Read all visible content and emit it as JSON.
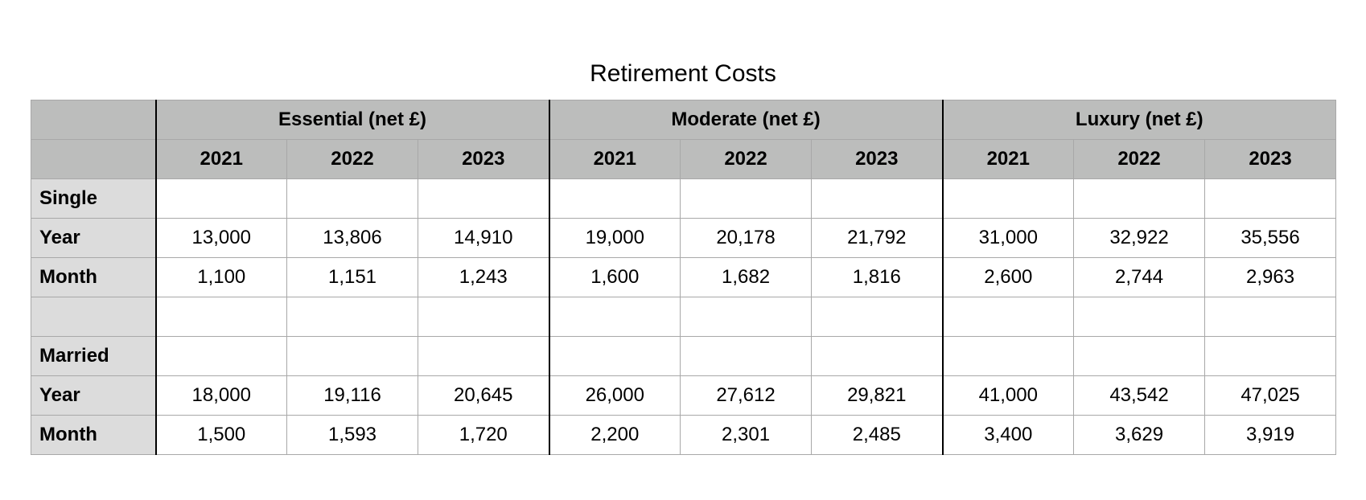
{
  "title": "Retirement Costs",
  "table": {
    "groups": [
      "Essential (net £)",
      "Moderate (net £)",
      "Luxury (net £)"
    ],
    "years": [
      "2021",
      "2022",
      "2023"
    ],
    "rows": [
      {
        "label": "Single",
        "values": [
          "",
          "",
          "",
          "",
          "",
          "",
          "",
          "",
          ""
        ]
      },
      {
        "label": "Year",
        "values": [
          "13,000",
          "13,806",
          "14,910",
          "19,000",
          "20,178",
          "21,792",
          "31,000",
          "32,922",
          "35,556"
        ]
      },
      {
        "label": "Month",
        "values": [
          "1,100",
          "1,151",
          "1,243",
          "1,600",
          "1,682",
          "1,816",
          "2,600",
          "2,744",
          "2,963"
        ]
      },
      {
        "label": "",
        "values": [
          "",
          "",
          "",
          "",
          "",
          "",
          "",
          "",
          ""
        ]
      },
      {
        "label": "Married",
        "values": [
          "",
          "",
          "",
          "",
          "",
          "",
          "",
          "",
          ""
        ]
      },
      {
        "label": "Year",
        "values": [
          "18,000",
          "19,116",
          "20,645",
          "26,000",
          "27,612",
          "29,821",
          "41,000",
          "43,542",
          "47,025"
        ]
      },
      {
        "label": "Month",
        "values": [
          "1,500",
          "1,593",
          "1,720",
          "2,200",
          "2,301",
          "2,485",
          "3,400",
          "3,629",
          "3,919"
        ]
      }
    ]
  }
}
